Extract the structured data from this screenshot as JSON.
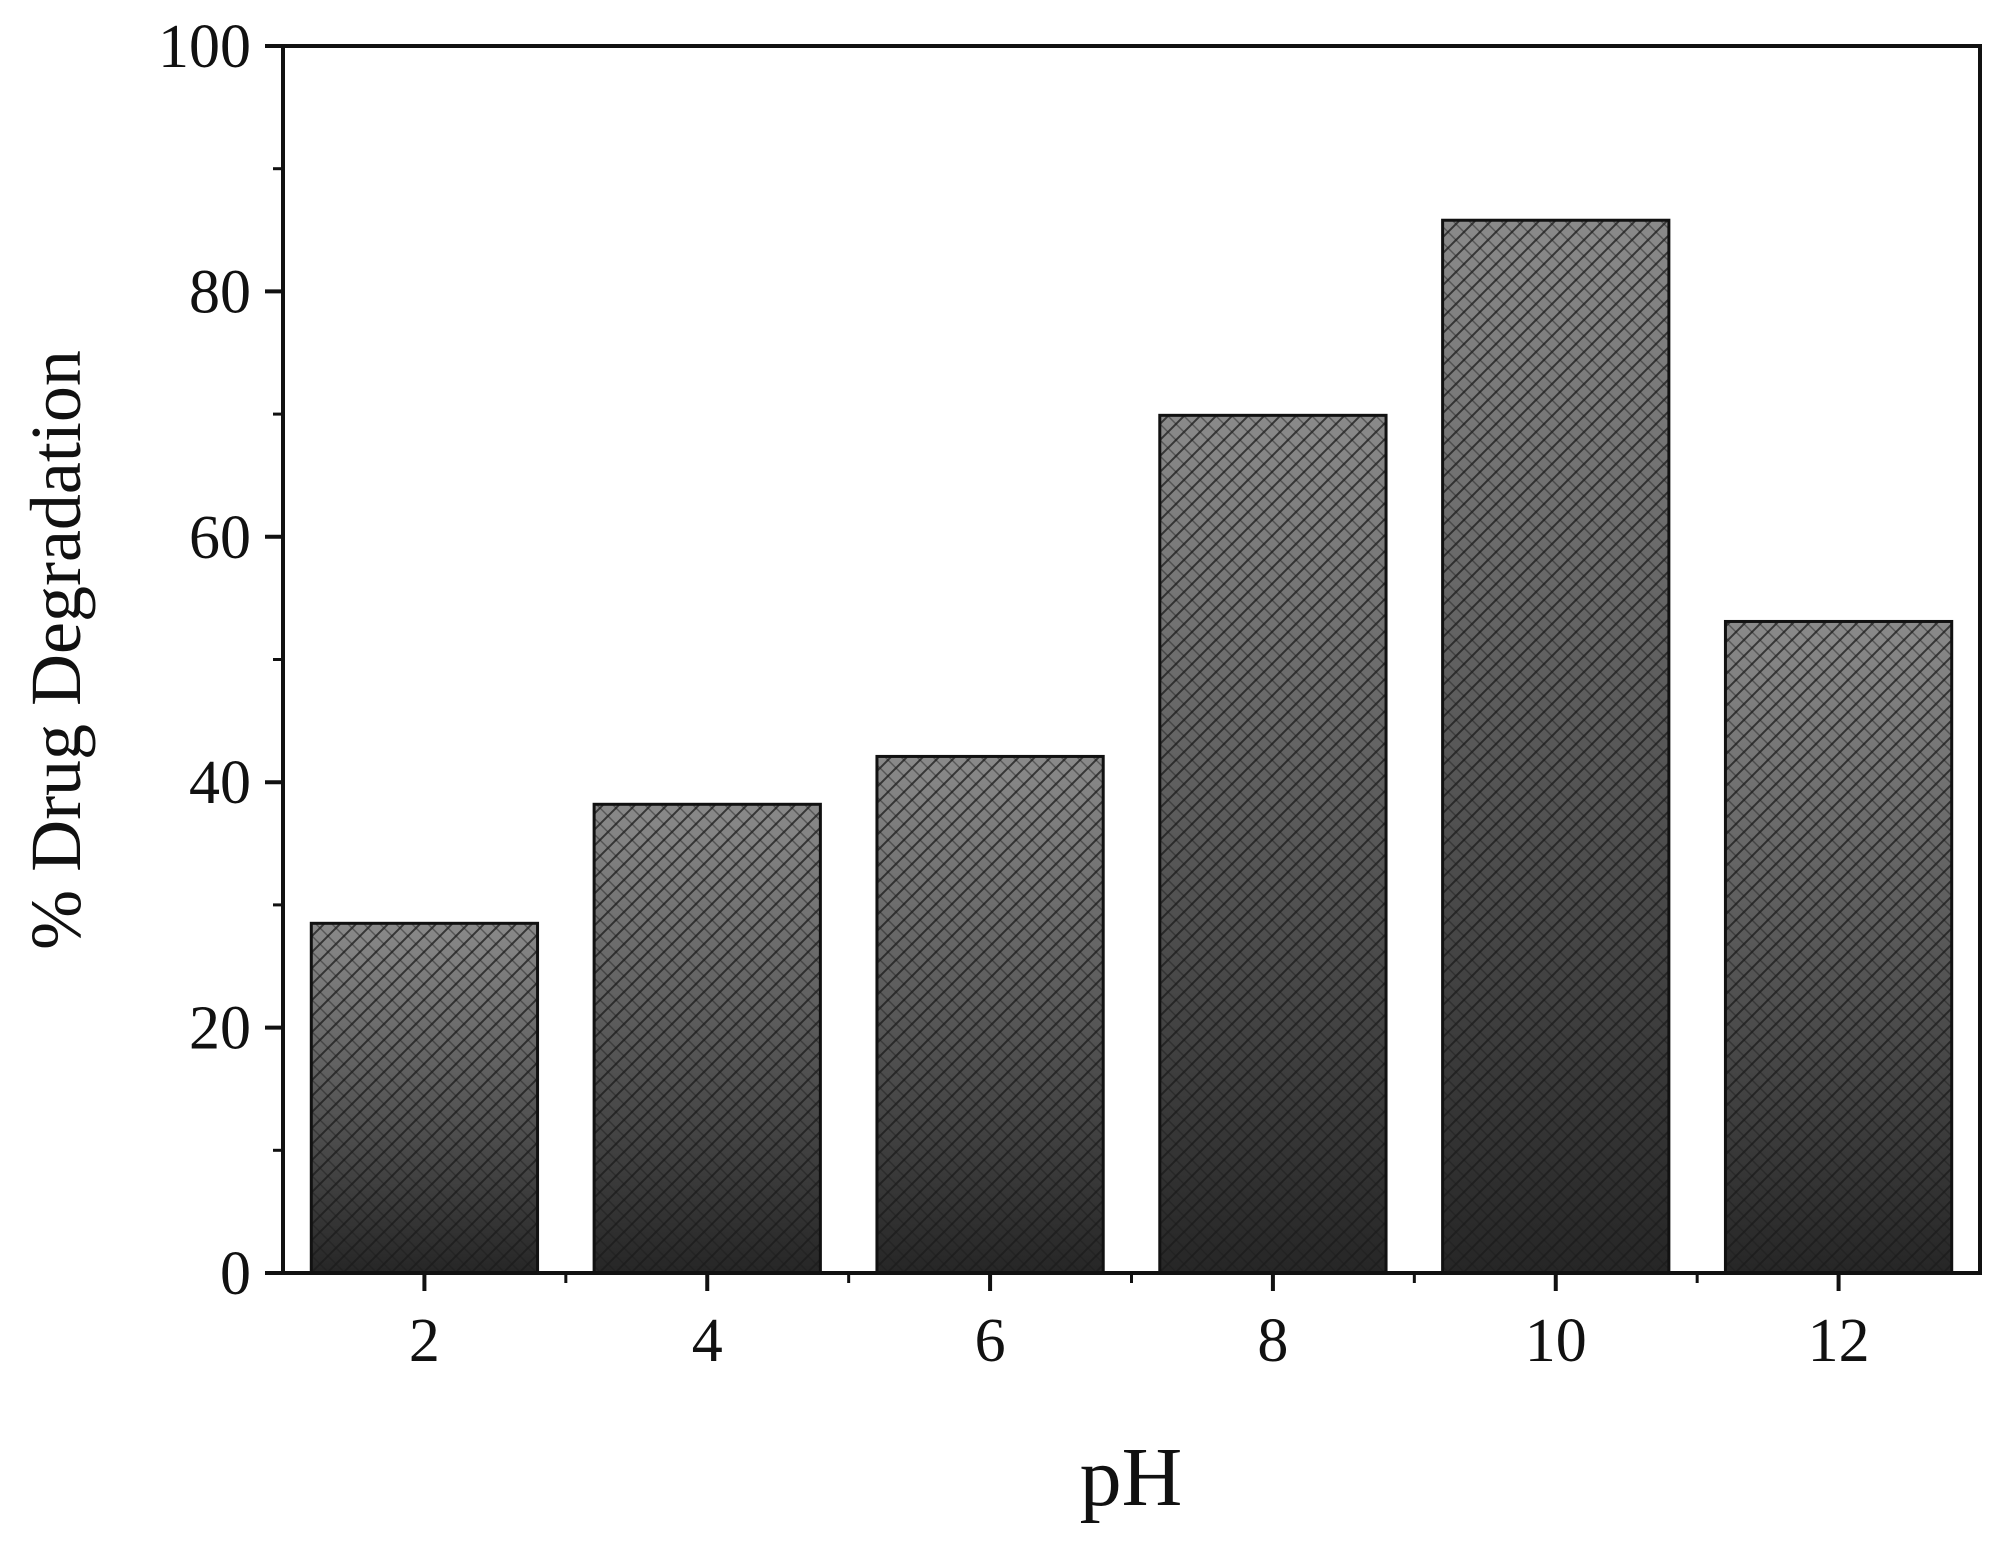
{
  "chart_data": {
    "type": "bar",
    "categories": [
      "2",
      "4",
      "6",
      "8",
      "10",
      "12"
    ],
    "values": [
      28.5,
      38.2,
      42.1,
      69.9,
      85.8,
      53.1
    ],
    "xlabel": "pH",
    "ylabel": "% Drug Degradation",
    "ylim": [
      0,
      100
    ],
    "yticks": [
      0,
      20,
      40,
      60,
      80,
      100
    ],
    "grid": false,
    "legend": "none",
    "bar_fill": "crosshatch gradient",
    "colors": {
      "bar_top": "#8a8a8a",
      "bar_bottom": "#262626",
      "hatch": "#1a1a1a",
      "axis": "#111111"
    }
  }
}
